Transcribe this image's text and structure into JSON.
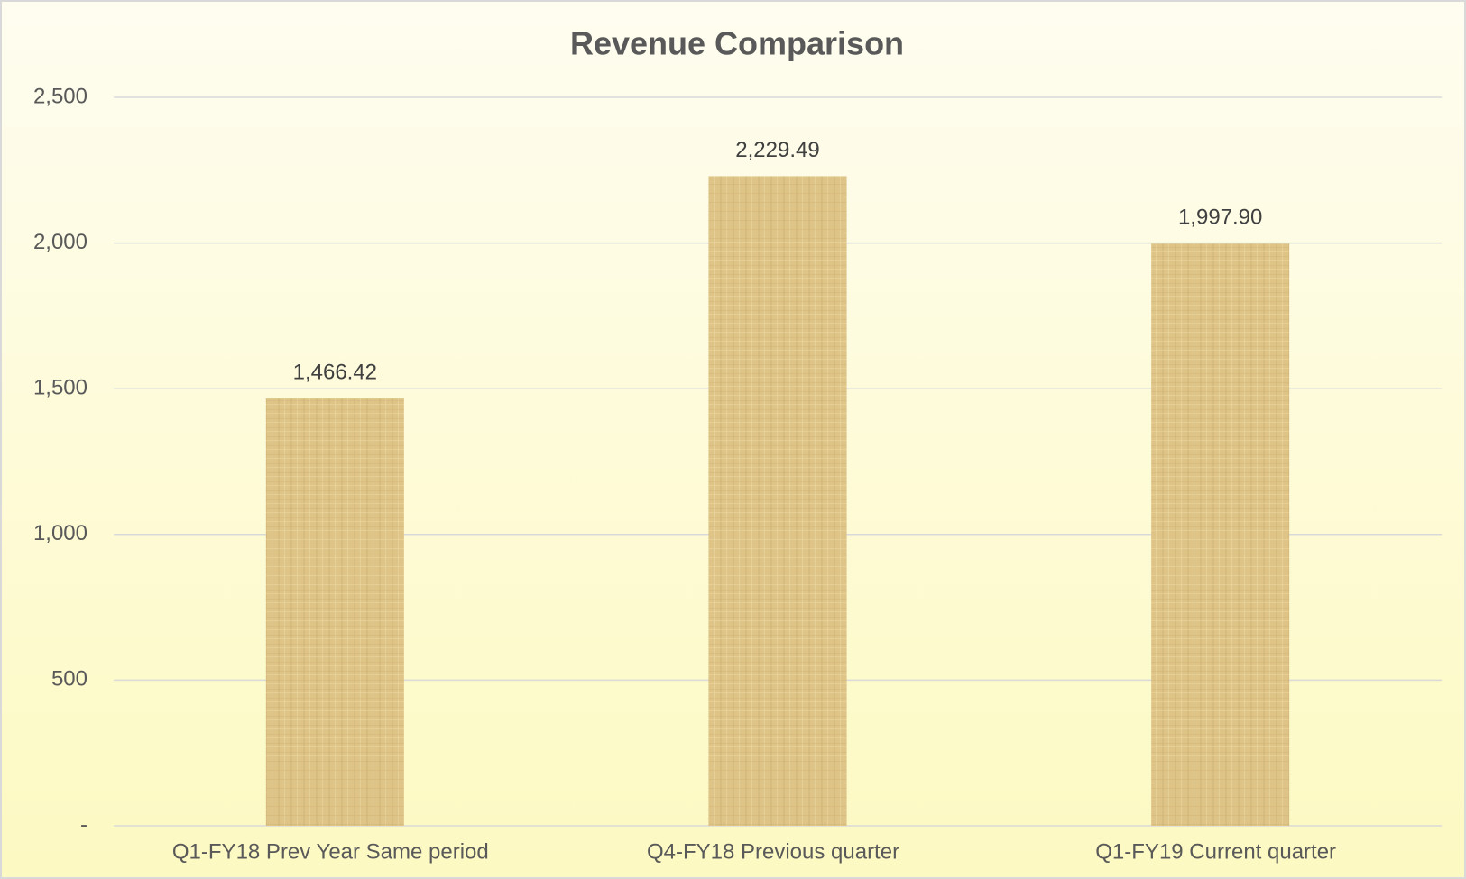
{
  "chart_data": {
    "type": "bar",
    "title": "Revenue Comparison",
    "categories": [
      "Q1-FY18 Prev Year Same period",
      "Q4-FY18 Previous quarter",
      "Q1-FY19 Current quarter"
    ],
    "values": [
      1466.42,
      2229.49,
      1997.9
    ],
    "value_labels": [
      "1,466.42",
      "2,229.49",
      "1,997.90"
    ],
    "color": "#dfc488",
    "ylim": [
      0,
      2500
    ],
    "yticks": [
      {
        "value": 0,
        "label": "-"
      },
      500,
      {
        "value": 1000,
        "label": "1,000"
      },
      {
        "value": 1500,
        "label": "1,500"
      },
      {
        "value": 2000,
        "label": "2,000"
      },
      {
        "value": 2500,
        "label": "2,500"
      }
    ],
    "grid": true
  }
}
